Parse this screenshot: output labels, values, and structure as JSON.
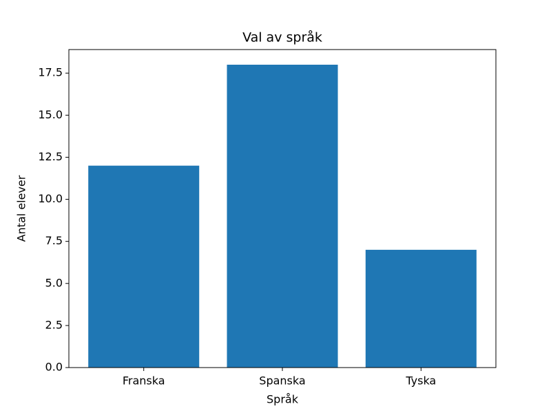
{
  "chart_data": {
    "type": "bar",
    "title": "Val av språk",
    "x_label": "Språk",
    "y_label": "Antal elever",
    "categories": [
      "Franska",
      "Spanska",
      "Tyska"
    ],
    "values": [
      12,
      18,
      7
    ],
    "color": "#1f77b4",
    "ylim": [
      0,
      18.9
    ],
    "yticks": [
      {
        "value": 0,
        "label": "0.0"
      },
      2.5,
      {
        "value": 5,
        "label": "5.0"
      },
      7.5,
      {
        "value": 10,
        "label": "10.0"
      },
      12.5,
      {
        "value": 15,
        "label": "15.0"
      },
      17.5
    ],
    "grid": false
  }
}
